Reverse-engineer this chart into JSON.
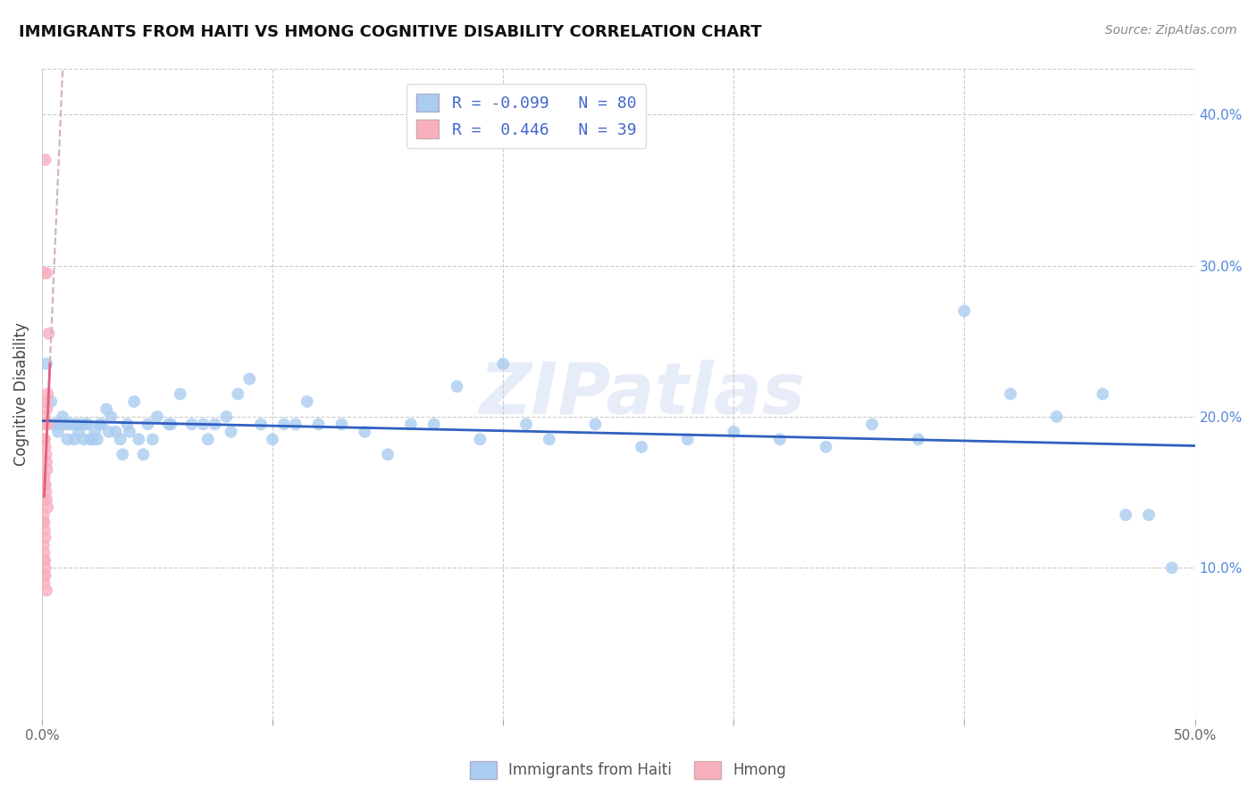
{
  "title": "IMMIGRANTS FROM HAITI VS HMONG COGNITIVE DISABILITY CORRELATION CHART",
  "source": "Source: ZipAtlas.com",
  "ylabel": "Cognitive Disability",
  "xlim": [
    0.0,
    0.5
  ],
  "ylim": [
    0.0,
    0.43
  ],
  "legend_r_haiti": "-0.099",
  "legend_n_haiti": "80",
  "legend_r_hmong": "0.446",
  "legend_n_hmong": "39",
  "haiti_color": "#aaccf0",
  "hmong_color": "#f8b0c0",
  "haiti_line_color": "#3060c0",
  "hmong_line_color": "#e06080",
  "hmong_dashed_color": "#d0b0b8",
  "watermark": "ZIPatlas",
  "haiti_points": [
    [
      0.002,
      0.235
    ],
    [
      0.004,
      0.21
    ],
    [
      0.005,
      0.195
    ],
    [
      0.006,
      0.195
    ],
    [
      0.007,
      0.19
    ],
    [
      0.008,
      0.195
    ],
    [
      0.009,
      0.2
    ],
    [
      0.01,
      0.195
    ],
    [
      0.011,
      0.185
    ],
    [
      0.012,
      0.195
    ],
    [
      0.013,
      0.195
    ],
    [
      0.014,
      0.185
    ],
    [
      0.015,
      0.195
    ],
    [
      0.016,
      0.19
    ],
    [
      0.017,
      0.195
    ],
    [
      0.018,
      0.185
    ],
    [
      0.019,
      0.195
    ],
    [
      0.02,
      0.195
    ],
    [
      0.021,
      0.185
    ],
    [
      0.022,
      0.185
    ],
    [
      0.023,
      0.19
    ],
    [
      0.024,
      0.185
    ],
    [
      0.025,
      0.195
    ],
    [
      0.026,
      0.195
    ],
    [
      0.028,
      0.205
    ],
    [
      0.029,
      0.19
    ],
    [
      0.03,
      0.2
    ],
    [
      0.032,
      0.19
    ],
    [
      0.034,
      0.185
    ],
    [
      0.035,
      0.175
    ],
    [
      0.037,
      0.195
    ],
    [
      0.038,
      0.19
    ],
    [
      0.04,
      0.21
    ],
    [
      0.042,
      0.185
    ],
    [
      0.044,
      0.175
    ],
    [
      0.046,
      0.195
    ],
    [
      0.048,
      0.185
    ],
    [
      0.05,
      0.2
    ],
    [
      0.055,
      0.195
    ],
    [
      0.056,
      0.195
    ],
    [
      0.06,
      0.215
    ],
    [
      0.065,
      0.195
    ],
    [
      0.07,
      0.195
    ],
    [
      0.072,
      0.185
    ],
    [
      0.075,
      0.195
    ],
    [
      0.08,
      0.2
    ],
    [
      0.082,
      0.19
    ],
    [
      0.085,
      0.215
    ],
    [
      0.09,
      0.225
    ],
    [
      0.095,
      0.195
    ],
    [
      0.1,
      0.185
    ],
    [
      0.105,
      0.195
    ],
    [
      0.11,
      0.195
    ],
    [
      0.115,
      0.21
    ],
    [
      0.12,
      0.195
    ],
    [
      0.13,
      0.195
    ],
    [
      0.14,
      0.19
    ],
    [
      0.15,
      0.175
    ],
    [
      0.16,
      0.195
    ],
    [
      0.17,
      0.195
    ],
    [
      0.18,
      0.22
    ],
    [
      0.19,
      0.185
    ],
    [
      0.2,
      0.235
    ],
    [
      0.21,
      0.195
    ],
    [
      0.22,
      0.185
    ],
    [
      0.24,
      0.195
    ],
    [
      0.26,
      0.18
    ],
    [
      0.28,
      0.185
    ],
    [
      0.3,
      0.19
    ],
    [
      0.32,
      0.185
    ],
    [
      0.34,
      0.18
    ],
    [
      0.36,
      0.195
    ],
    [
      0.38,
      0.185
    ],
    [
      0.4,
      0.27
    ],
    [
      0.42,
      0.215
    ],
    [
      0.44,
      0.2
    ],
    [
      0.46,
      0.215
    ],
    [
      0.47,
      0.135
    ],
    [
      0.48,
      0.135
    ],
    [
      0.49,
      0.1
    ]
  ],
  "hmong_points": [
    [
      0.0015,
      0.37
    ],
    [
      0.002,
      0.295
    ],
    [
      0.003,
      0.255
    ],
    [
      0.001,
      0.295
    ],
    [
      0.0025,
      0.215
    ],
    [
      0.0018,
      0.21
    ],
    [
      0.0022,
      0.205
    ],
    [
      0.0012,
      0.2
    ],
    [
      0.0015,
      0.195
    ],
    [
      0.002,
      0.195
    ],
    [
      0.0025,
      0.195
    ],
    [
      0.001,
      0.185
    ],
    [
      0.0012,
      0.185
    ],
    [
      0.0015,
      0.18
    ],
    [
      0.0018,
      0.175
    ],
    [
      0.002,
      0.17
    ],
    [
      0.0022,
      0.165
    ],
    [
      0.001,
      0.16
    ],
    [
      0.0012,
      0.155
    ],
    [
      0.0015,
      0.155
    ],
    [
      0.0018,
      0.15
    ],
    [
      0.002,
      0.145
    ],
    [
      0.0025,
      0.14
    ],
    [
      0.0008,
      0.135
    ],
    [
      0.001,
      0.13
    ],
    [
      0.0012,
      0.125
    ],
    [
      0.0015,
      0.12
    ],
    [
      0.0008,
      0.115
    ],
    [
      0.001,
      0.11
    ],
    [
      0.0012,
      0.105
    ],
    [
      0.0015,
      0.1
    ],
    [
      0.0008,
      0.095
    ],
    [
      0.001,
      0.09
    ],
    [
      0.002,
      0.085
    ],
    [
      0.001,
      0.16
    ],
    [
      0.0005,
      0.145
    ],
    [
      0.0008,
      0.13
    ],
    [
      0.0012,
      0.105
    ],
    [
      0.0015,
      0.095
    ]
  ]
}
